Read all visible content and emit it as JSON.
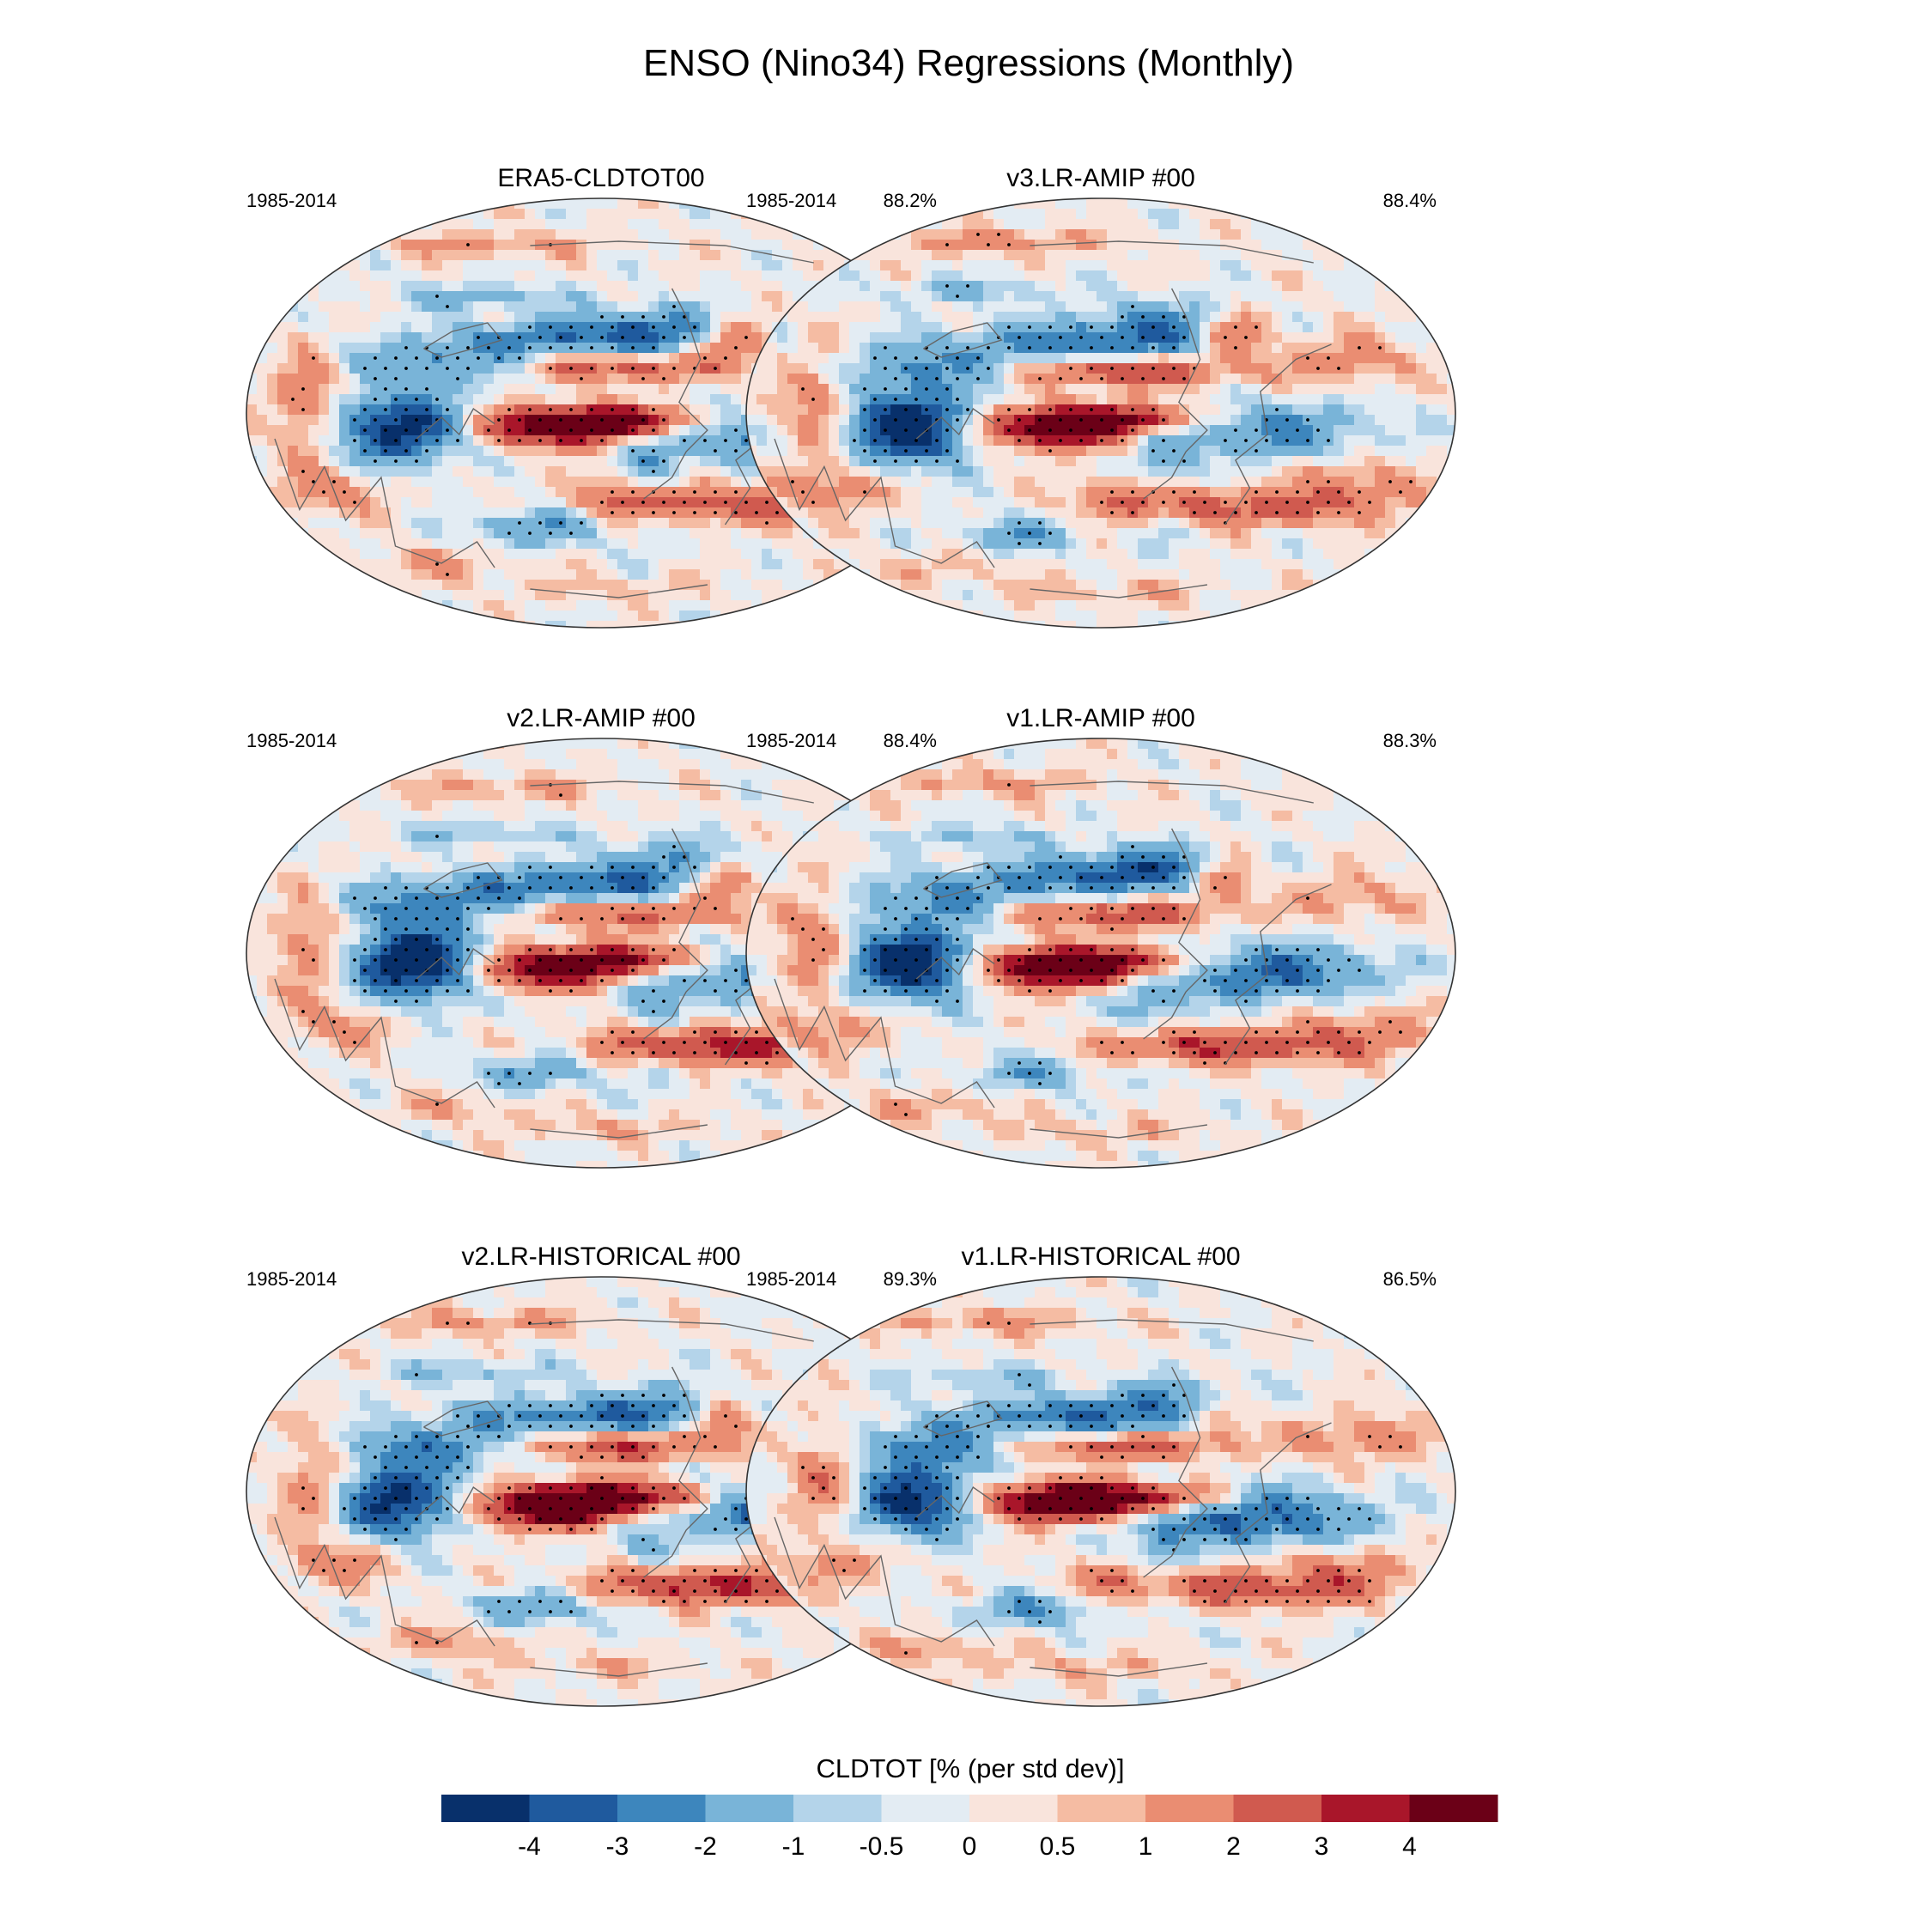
{
  "figure_title": "ENSO (Nino34) Regressions (Monthly)",
  "palette": [
    "#08306b",
    "#1f5a9e",
    "#3d86bd",
    "#79b4d8",
    "#b4d4ea",
    "#e3ecf3",
    "#f9e4dc",
    "#f5bca3",
    "#ea8d72",
    "#d05a4f",
    "#a9162a",
    "#6b0017"
  ],
  "coast_color": "#666666",
  "stipple_color": "#000000",
  "chart_data": [
    {
      "type": "heatmap",
      "title": "ERA5-CLDTOT00",
      "period": "1985-2014",
      "stat": "88.2%",
      "variant": 0
    },
    {
      "type": "heatmap",
      "title": "v3.LR-AMIP  #00",
      "period": "1985-2014",
      "stat": "88.4%",
      "variant": 1
    },
    {
      "type": "heatmap",
      "title": "v2.LR-AMIP  #00",
      "period": "1985-2014",
      "stat": "88.4%",
      "variant": 2
    },
    {
      "type": "heatmap",
      "title": "v1.LR-AMIP  #00",
      "period": "1985-2014",
      "stat": "88.3%",
      "variant": 3
    },
    {
      "type": "heatmap",
      "title": "v2.LR-HISTORICAL  #00",
      "period": "1985-2014",
      "stat": "89.3%",
      "variant": 4
    },
    {
      "type": "heatmap",
      "title": "v1.LR-HISTORICAL  #00",
      "period": "1985-2014",
      "stat": "86.5%",
      "variant": 5
    }
  ],
  "colorbar": {
    "label": "CLDTOT [% (per std dev)]",
    "levels": [
      -4,
      -3,
      -2,
      -1,
      -0.5,
      0,
      0.5,
      1,
      2,
      3,
      4
    ],
    "tick_labels": [
      "-4",
      "-3",
      "-2",
      "-1",
      "-0.5",
      "0",
      "0.5",
      "1",
      "2",
      "3",
      "4"
    ]
  }
}
